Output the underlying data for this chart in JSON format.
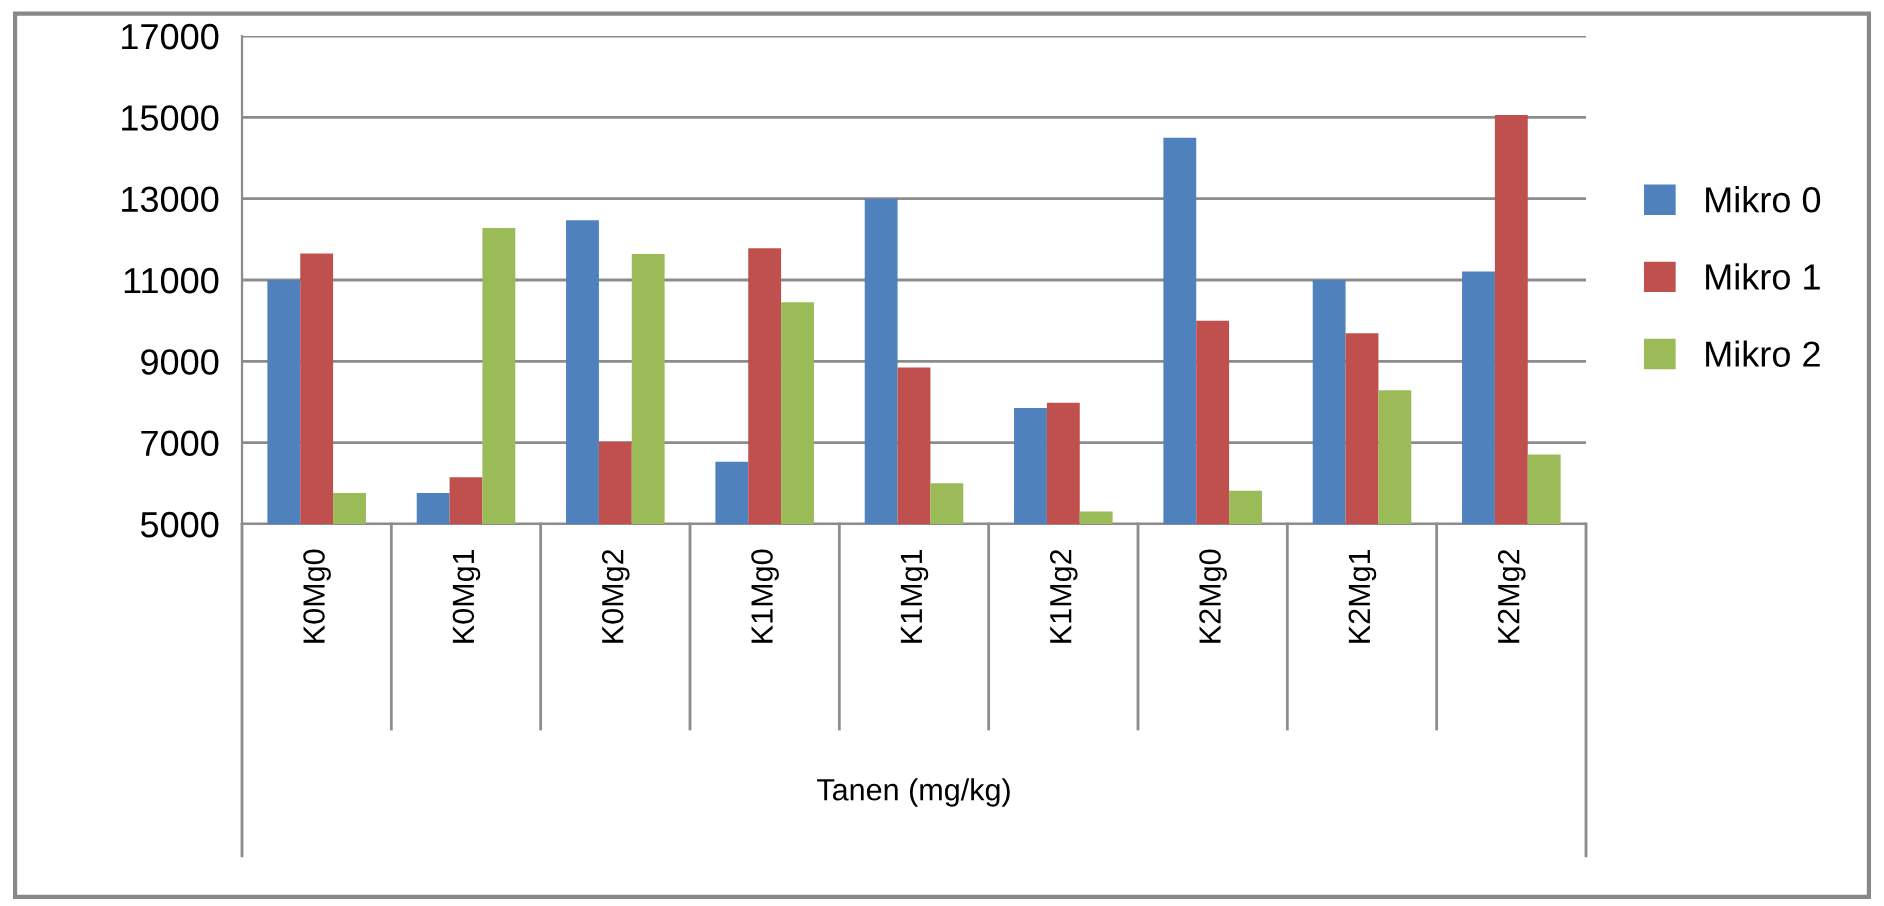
{
  "chart_data": {
    "type": "bar",
    "xlabel": "Tanen (mg/kg)",
    "categories": [
      "K0Mg0",
      "K0Mg1",
      "K0Mg2",
      "K1Mg0",
      "K1Mg1",
      "K1Mg2",
      "K2Mg0",
      "K2Mg1",
      "K2Mg2"
    ],
    "series": [
      {
        "name": "Mikro 0",
        "color": "#4f81bd",
        "values": [
          11000,
          5760,
          12470,
          6530,
          13000,
          7850,
          14500,
          11000,
          11210
        ]
      },
      {
        "name": "Mikro 1",
        "color": "#c0504d",
        "values": [
          11650,
          6150,
          7020,
          11780,
          8850,
          7980,
          10000,
          9690,
          15060
        ]
      },
      {
        "name": "Mikro 2",
        "color": "#9bbb59",
        "values": [
          5760,
          12280,
          11640,
          10450,
          6000,
          5310,
          5820,
          8290,
          6710
        ]
      }
    ],
    "ylim": [
      5000,
      17000
    ],
    "yticks": [
      5000,
      7000,
      9000,
      11000,
      13000,
      15000,
      17000
    ],
    "grid": "y",
    "legend": "right"
  }
}
